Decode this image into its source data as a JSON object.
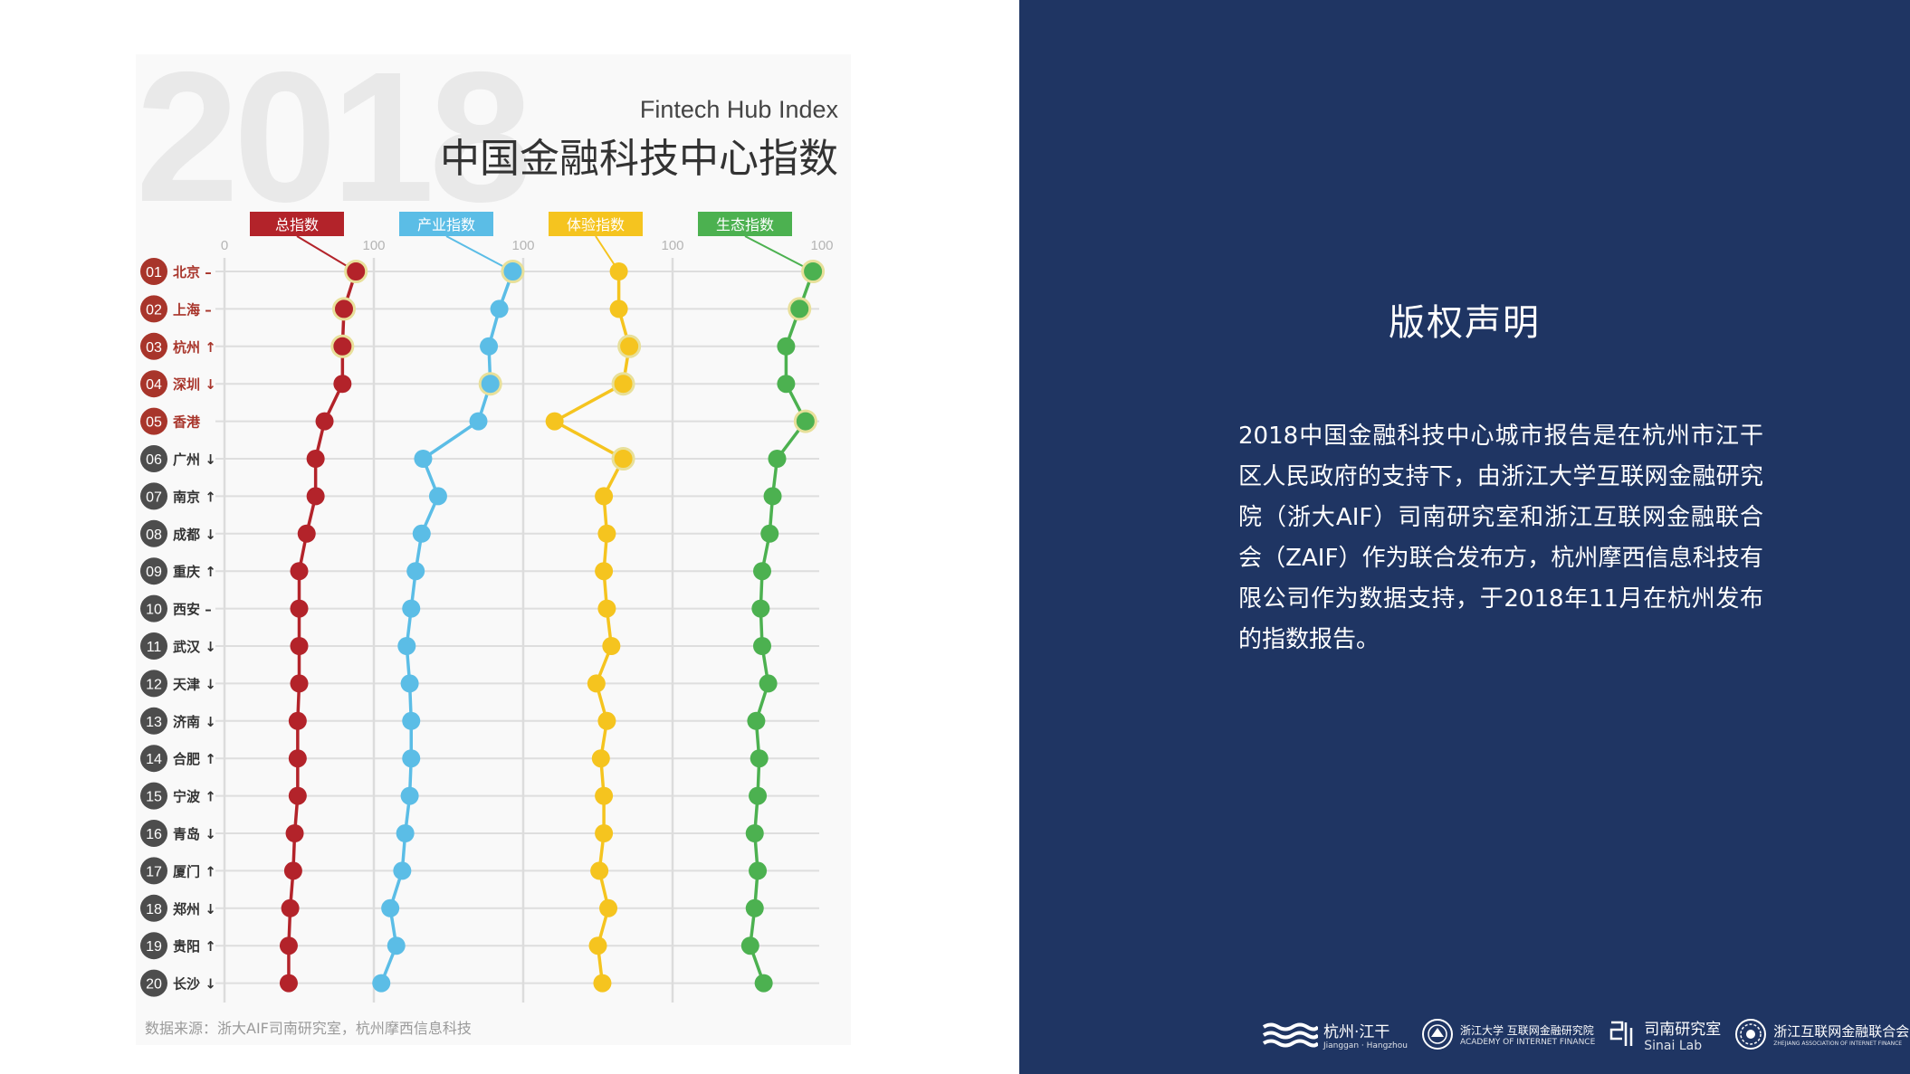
{
  "header": {
    "year_watermark": "2018",
    "subtitle_en": "Fintech Hub Index",
    "title_cn": "中国金融科技中心指数"
  },
  "source_note": "数据来源：浙大AIF司南研究室，杭州摩西信息科技",
  "copyright": {
    "heading": "版权声明",
    "body": "2018中国金融科技中心城市报告是在杭州市江干区人民政府的支持下，由浙江大学互联网金融研究院（浙大AIF）司南研究室和浙江互联网金融联合会（ZAIF）作为联合发布方，杭州摩西信息科技有限公司作为数据支持，于2018年11月在杭州发布的指数报告。"
  },
  "logos": [
    {
      "name": "杭州·江干",
      "sub": "Jianggan · Hangzhou"
    },
    {
      "name": "浙江大学 互联网金融研究院",
      "sub": "ACADEMY OF INTERNET FINANCE"
    },
    {
      "name": "司南研究室",
      "sub": "Sinai Lab"
    },
    {
      "name": "浙江互联网金融联合会",
      "sub": "ZHEJIANG ASSOCIATION OF INTERNET FINANCE"
    }
  ],
  "colors": {
    "panel_blue": "#1f3563",
    "red": "#b3232a",
    "blue": "#5bbde6",
    "yellow": "#f5c41f",
    "green": "#4cb150",
    "rank_top5": "#a8352b",
    "rank_rest": "#4d4d4d",
    "city_top5": "#a8352b",
    "city_rest": "#333333"
  },
  "chart_data": {
    "type": "line",
    "orientation": "vertical",
    "axis_ticks": [
      "0",
      "100"
    ],
    "xlim": [
      0,
      100
    ],
    "categories": [
      {
        "rank": "01",
        "city": "北京",
        "trend": "–"
      },
      {
        "rank": "02",
        "city": "上海",
        "trend": "–"
      },
      {
        "rank": "03",
        "city": "杭州",
        "trend": "↑"
      },
      {
        "rank": "04",
        "city": "深圳",
        "trend": "↓"
      },
      {
        "rank": "05",
        "city": "香港",
        "trend": ""
      },
      {
        "rank": "06",
        "city": "广州",
        "trend": "↓"
      },
      {
        "rank": "07",
        "city": "南京",
        "trend": "↑"
      },
      {
        "rank": "08",
        "city": "成都",
        "trend": "↓"
      },
      {
        "rank": "09",
        "city": "重庆",
        "trend": "↑"
      },
      {
        "rank": "10",
        "city": "西安",
        "trend": "–"
      },
      {
        "rank": "11",
        "city": "武汉",
        "trend": "↓"
      },
      {
        "rank": "12",
        "city": "天津",
        "trend": "↓"
      },
      {
        "rank": "13",
        "city": "济南",
        "trend": "↓"
      },
      {
        "rank": "14",
        "city": "合肥",
        "trend": "↑"
      },
      {
        "rank": "15",
        "city": "宁波",
        "trend": "↑"
      },
      {
        "rank": "16",
        "city": "青岛",
        "trend": "↓"
      },
      {
        "rank": "17",
        "city": "厦门",
        "trend": "↑"
      },
      {
        "rank": "18",
        "city": "郑州",
        "trend": "↓"
      },
      {
        "rank": "19",
        "city": "贵阳",
        "trend": "↑"
      },
      {
        "rank": "20",
        "city": "长沙",
        "trend": "↓"
      }
    ],
    "series": [
      {
        "name": "总指数",
        "color": "#b3232a",
        "values": [
          88,
          80,
          79,
          79,
          67,
          61,
          61,
          55,
          50,
          50,
          50,
          50,
          49,
          49,
          49,
          47,
          46,
          44,
          43,
          43
        ],
        "highlight": [
          0,
          1,
          2
        ]
      },
      {
        "name": "产业指数",
        "color": "#5bbde6",
        "values": [
          93,
          84,
          77,
          78,
          70,
          33,
          43,
          32,
          28,
          25,
          22,
          24,
          25,
          25,
          24,
          21,
          19,
          11,
          15,
          5
        ],
        "highlight": [
          0,
          3
        ]
      },
      {
        "name": "体验指数",
        "color": "#f5c41f",
        "values": [
          64,
          64,
          71,
          67,
          21,
          67,
          54,
          56,
          54,
          56,
          59,
          49,
          56,
          52,
          54,
          54,
          51,
          57,
          50,
          53
        ],
        "highlight": [
          2,
          3,
          5
        ]
      },
      {
        "name": "生态指数",
        "color": "#4cb150",
        "values": [
          94,
          85,
          76,
          76,
          89,
          70,
          67,
          65,
          60,
          59,
          60,
          64,
          56,
          58,
          57,
          55,
          57,
          55,
          52,
          61
        ],
        "highlight": [
          0,
          1,
          4
        ]
      }
    ],
    "grid": true
  }
}
